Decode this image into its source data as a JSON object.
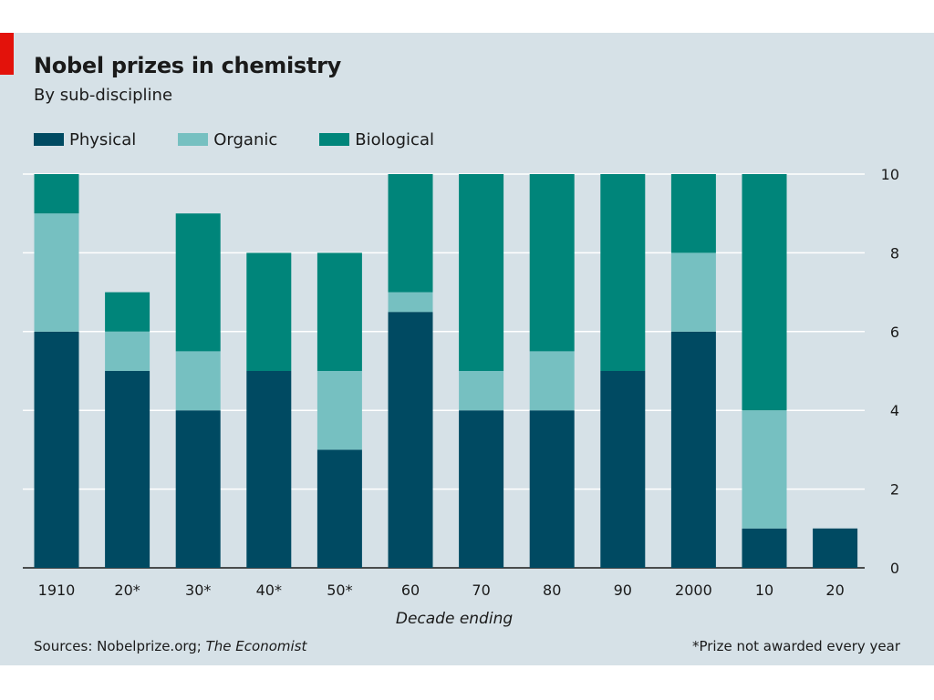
{
  "title": "Nobel prizes in chemistry",
  "subtitle": "By sub-discipline",
  "legend": [
    {
      "name": "Physical",
      "color": "#004a62"
    },
    {
      "name": "Organic",
      "color": "#76c0c1"
    },
    {
      "name": "Biological",
      "color": "#00857a"
    }
  ],
  "chart_data": {
    "type": "bar",
    "stacked": true,
    "categories": [
      "1910",
      "20*",
      "30*",
      "40*",
      "50*",
      "60",
      "70",
      "80",
      "90",
      "2000",
      "10",
      "20"
    ],
    "series": [
      {
        "name": "Physical",
        "color": "#004a62",
        "values": [
          6,
          5,
          4,
          5,
          3,
          6.5,
          4,
          4,
          5,
          6,
          1,
          1
        ]
      },
      {
        "name": "Organic",
        "color": "#76c0c1",
        "values": [
          3,
          1,
          1.5,
          0,
          2,
          0.5,
          1,
          1.5,
          0,
          2,
          3,
          0
        ]
      },
      {
        "name": "Biological",
        "color": "#00857a",
        "values": [
          1,
          1,
          3.5,
          3,
          3,
          3,
          5,
          4.5,
          5,
          2,
          6,
          0
        ]
      }
    ],
    "xlabel": "Decade ending",
    "ylabel": "",
    "ylim": [
      0,
      10
    ],
    "yticks": [
      0,
      2,
      4,
      6,
      8,
      10
    ],
    "grid": true,
    "legend_position": "top-left"
  },
  "footer": {
    "source_prefix": "Sources: Nobelprize.org; ",
    "source_publication": "The Economist",
    "footnote": "*Prize not awarded every year"
  }
}
